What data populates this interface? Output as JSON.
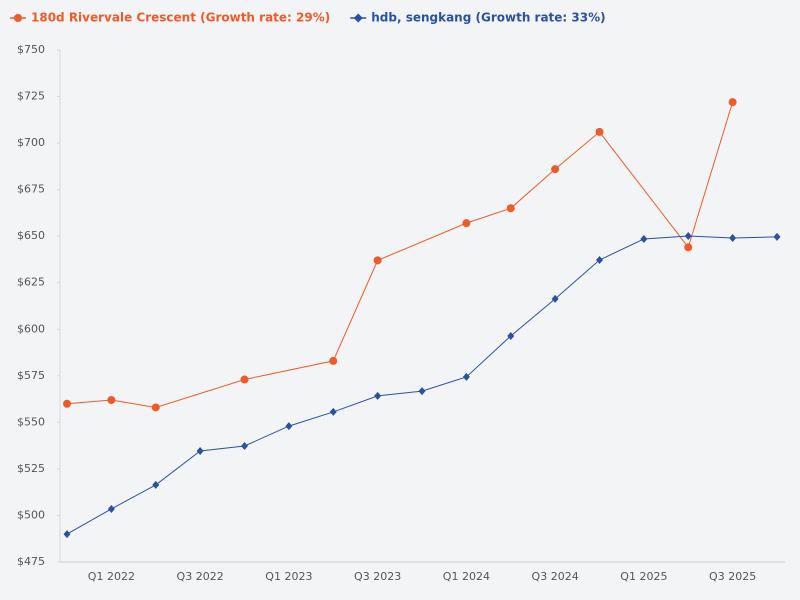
{
  "chart_data": {
    "type": "line",
    "categories": [
      null,
      "Q1 2022",
      null,
      "Q3 2022",
      null,
      "Q1 2023",
      null,
      "Q3 2023",
      null,
      "Q1 2024",
      null,
      "Q3 2024",
      null,
      "Q1 2025",
      null,
      "Q3 2025",
      null
    ],
    "series": [
      {
        "name": "180d Rivervale Crescent (Growth rate: 29%)",
        "color": "#f05a28",
        "marker": "circle",
        "values": [
          560,
          562,
          558,
          null,
          573,
          null,
          583,
          637,
          null,
          657,
          665,
          686,
          706,
          null,
          644,
          722,
          null
        ]
      },
      {
        "name": "hdb, sengkang (Growth rate: 33%)",
        "color": "#2a52a0",
        "marker": "diamond",
        "values": [
          490,
          503.5,
          516.4,
          534.6,
          537.3,
          548,
          555.6,
          564.2,
          566.8,
          574.4,
          596.4,
          616.3,
          637.2,
          648.5,
          650.1,
          649,
          649.6
        ]
      }
    ],
    "ylim": [
      475,
      750
    ],
    "yticks": [
      {
        "value": 475,
        "label": "$475"
      },
      {
        "value": 500,
        "label": "$500"
      },
      {
        "value": 525,
        "label": "$525"
      },
      {
        "value": 550,
        "label": "$550"
      },
      {
        "value": 575,
        "label": "$575"
      },
      {
        "value": 600,
        "label": "$600"
      },
      {
        "value": 625,
        "label": "$625"
      },
      {
        "value": 650,
        "label": "$650"
      },
      {
        "value": 675,
        "label": "$675"
      },
      {
        "value": 700,
        "label": "$700"
      },
      {
        "value": 725,
        "label": "$725"
      },
      {
        "value": 750,
        "label": "$750"
      }
    ],
    "grid": false,
    "legend": "top-left"
  }
}
